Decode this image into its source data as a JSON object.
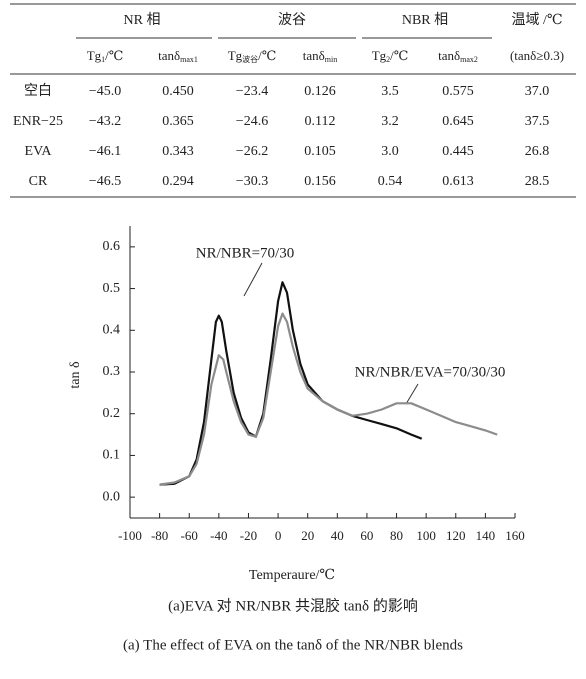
{
  "table": {
    "group_headers": [
      "NR 相",
      "波谷",
      "NBR 相",
      "温域 /℃"
    ],
    "column_headers": [
      {
        "base": "Tg",
        "sub": "1",
        "tail": "/℃"
      },
      {
        "base": "tanδ",
        "sub": "max1"
      },
      {
        "base": "Tg",
        "sub": "波谷",
        "tail": "/℃"
      },
      {
        "base": "tanδ",
        "sub": "min"
      },
      {
        "base": "Tg",
        "sub": "2",
        "tail": "/℃"
      },
      {
        "base": "tanδ",
        "sub": "max2"
      },
      "(tanδ≥0.3)"
    ],
    "rows": [
      [
        "空白",
        "−45.0",
        "0.450",
        "−23.4",
        "0.126",
        "3.5",
        "0.575",
        "37.0"
      ],
      [
        "ENR−25",
        "−43.2",
        "0.365",
        "−24.6",
        "0.112",
        "3.2",
        "0.645",
        "37.5"
      ],
      [
        "EVA",
        "−46.1",
        "0.343",
        "−26.2",
        "0.105",
        "3.0",
        "0.445",
        "26.8"
      ],
      [
        "CR",
        "−46.5",
        "0.294",
        "−30.3",
        "0.156",
        "0.54",
        "0.613",
        "28.5"
      ]
    ]
  },
  "chart_data": {
    "type": "line",
    "x_label": "Temperaure/℃",
    "y_label": "tan δ",
    "xlim": [
      -100,
      160
    ],
    "ylim": [
      -0.05,
      0.65
    ],
    "xticks": [
      -100,
      -80,
      -60,
      -40,
      -20,
      0,
      20,
      40,
      60,
      80,
      100,
      120,
      140,
      160
    ],
    "yticks": [
      {
        "value": 0,
        "label": "0.0"
      },
      0.1,
      0.2,
      0.3,
      0.4,
      0.5,
      0.6
    ],
    "series": [
      {
        "name": "NR/NBR=70/30",
        "color": "#111111",
        "x": [
          -80,
          -70,
          -60,
          -55,
          -50,
          -45,
          -42,
          -40,
          -38,
          -35,
          -30,
          -25,
          -20,
          -15,
          -10,
          -5,
          0,
          3,
          6,
          10,
          15,
          20,
          30,
          40,
          50,
          60,
          70,
          80,
          90,
          97
        ],
        "values": [
          0.03,
          0.032,
          0.05,
          0.09,
          0.18,
          0.33,
          0.42,
          0.435,
          0.42,
          0.35,
          0.25,
          0.19,
          0.155,
          0.145,
          0.2,
          0.33,
          0.47,
          0.515,
          0.49,
          0.4,
          0.32,
          0.27,
          0.23,
          0.21,
          0.195,
          0.185,
          0.175,
          0.165,
          0.15,
          0.14
        ]
      },
      {
        "name": "NR/NBR/EVA=70/30/30",
        "color": "#8c8c8c",
        "x": [
          -80,
          -70,
          -60,
          -55,
          -50,
          -45,
          -40,
          -37,
          -35,
          -30,
          -25,
          -20,
          -15,
          -10,
          -5,
          0,
          3,
          6,
          10,
          15,
          20,
          30,
          40,
          50,
          60,
          70,
          80,
          90,
          100,
          110,
          120,
          130,
          140,
          148
        ],
        "values": [
          0.03,
          0.035,
          0.05,
          0.08,
          0.15,
          0.27,
          0.34,
          0.33,
          0.3,
          0.23,
          0.18,
          0.15,
          0.145,
          0.19,
          0.3,
          0.41,
          0.44,
          0.42,
          0.36,
          0.3,
          0.26,
          0.23,
          0.21,
          0.195,
          0.2,
          0.21,
          0.225,
          0.225,
          0.21,
          0.195,
          0.18,
          0.17,
          0.16,
          0.15
        ]
      }
    ]
  },
  "captions": [
    "(a)EVA 对 NR/NBR 共混胶 tanδ 的影响",
    "(a) The effect of EVA on the tanδ of the NR/NBR blends"
  ]
}
